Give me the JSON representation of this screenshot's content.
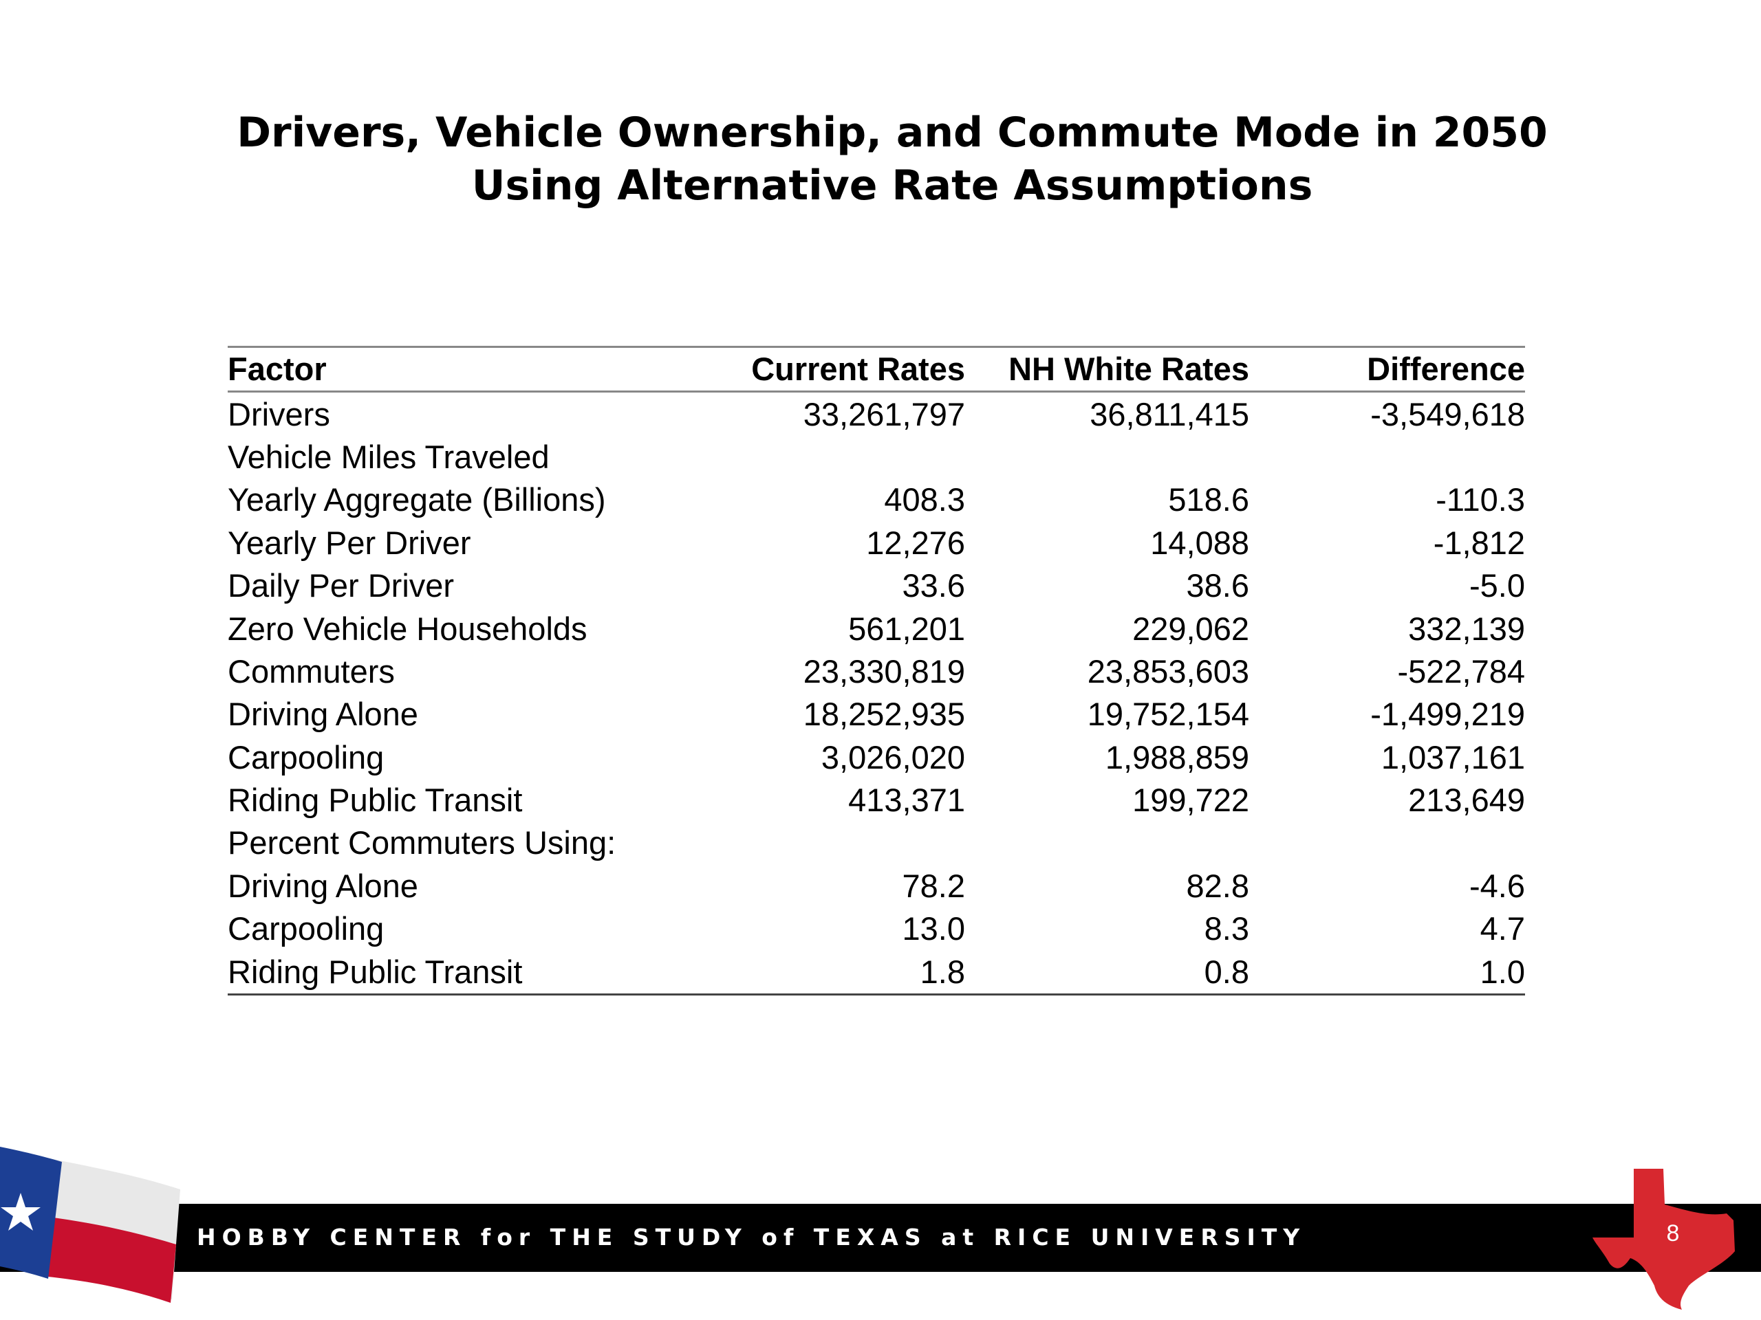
{
  "title": "Drivers, Vehicle Ownership, and Commute Mode in 2050 Using Alternative Rate Assumptions",
  "table": {
    "header": [
      "Factor",
      "Current Rates",
      "NH White Rates",
      "Difference"
    ],
    "rows": [
      {
        "label": "Drivers",
        "values": [
          "33,261,797",
          "36,811,415",
          "-3,549,618"
        ]
      },
      {
        "label": "Vehicle Miles Traveled",
        "subrows": [
          {
            "label": "Yearly Aggregate (Billions)",
            "values": [
              "408.3",
              "518.6",
              "-110.3"
            ]
          },
          {
            "label": "Yearly Per Driver",
            "values": [
              "12,276",
              "14,088",
              "-1,812"
            ]
          },
          {
            "label": "Daily Per Driver",
            "values": [
              "33.6",
              "38.6",
              "-5.0"
            ]
          }
        ]
      },
      {
        "label": "Zero Vehicle Households",
        "values": [
          "561,201",
          "229,062",
          "332,139"
        ]
      },
      {
        "label": "Commuters",
        "values": [
          "23,330,819",
          "23,853,603",
          "-522,784"
        ],
        "subrows": [
          {
            "label": "Driving Alone",
            "values": [
              "18,252,935",
              "19,752,154",
              "-1,499,219"
            ]
          },
          {
            "label": "Carpooling",
            "values": [
              "3,026,020",
              "1,988,859",
              "1,037,161"
            ]
          },
          {
            "label": "Riding Public Transit",
            "values": [
              "413,371",
              "199,722",
              "213,649"
            ]
          }
        ]
      },
      {
        "label": "Percent Commuters Using:",
        "subrows": [
          {
            "label": "Driving Alone",
            "values": [
              "78.2",
              "82.8",
              "-4.6"
            ]
          },
          {
            "label": "Carpooling",
            "values": [
              "13.0",
              "8.3",
              "4.7"
            ]
          },
          {
            "label": "Riding Public Transit",
            "values": [
              "1.8",
              "0.8",
              "1.0"
            ]
          }
        ]
      }
    ]
  },
  "footer": {
    "organization": "HOBBY CENTER for THE STUDY of TEXAS at RICE UNIVERSITY",
    "page_number": "8"
  }
}
